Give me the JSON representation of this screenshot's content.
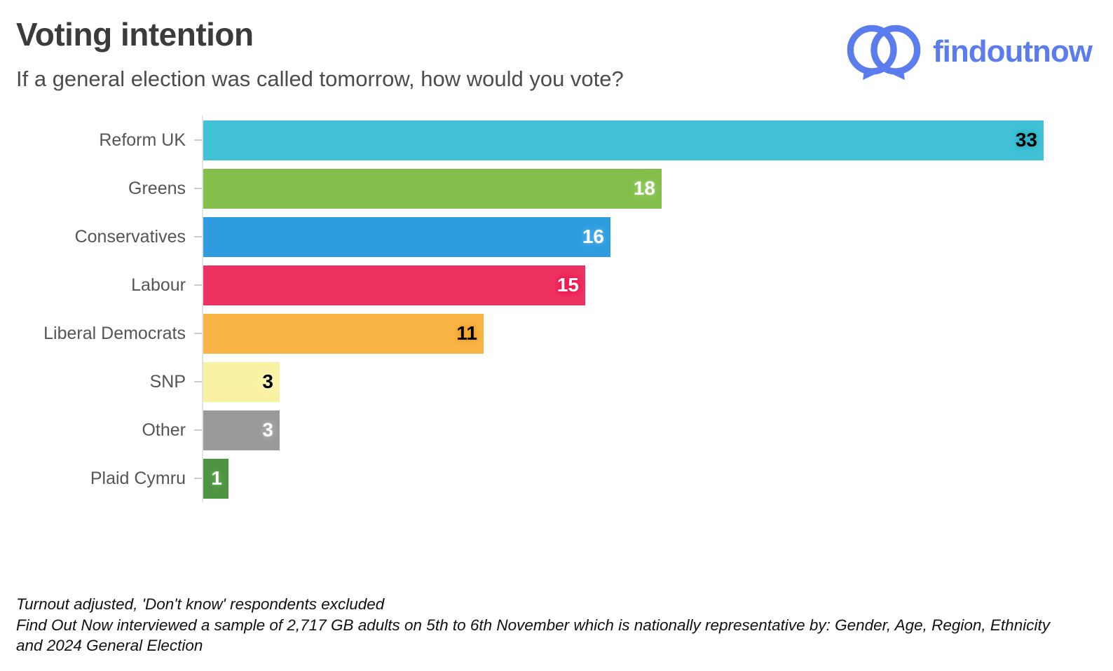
{
  "header": {
    "title": "Voting intention",
    "subtitle": "If a general election was called tomorrow, how would you vote?"
  },
  "logo": {
    "text": "findoutnow",
    "color": "#5b7cec"
  },
  "chart_data": {
    "type": "bar",
    "orientation": "horizontal",
    "title": "Voting intention",
    "question": "If a general election was called tomorrow, how would you vote?",
    "categories": [
      "Reform UK",
      "Greens",
      "Conservatives",
      "Labour",
      "Liberal Democrats",
      "SNP",
      "Other",
      "Plaid Cymru"
    ],
    "values": [
      33,
      18,
      16,
      15,
      11,
      3,
      3,
      1
    ],
    "bar_colors": [
      "#41c1d6",
      "#84be4b",
      "#309ce0",
      "#ec3261",
      "#f8b445",
      "#faf2a3",
      "#9a9a9a",
      "#4e9442"
    ],
    "value_label_colors": [
      "#000000",
      "#ffffff",
      "#ffffff",
      "#ffffff",
      "#000000",
      "#000000",
      "#ffffff",
      "#ffffff"
    ],
    "value_halo_colors": [
      "#2fb2c8",
      "#95cc62",
      "#4dabe8",
      "#f41650",
      "#f0a22f",
      "#fdf8c0",
      "#ababab",
      "#63a557"
    ],
    "xlim": [
      0,
      33.9
    ],
    "grid": false,
    "legend": false,
    "value_labels": "inside-end"
  },
  "footer": {
    "line1": "Turnout adjusted, 'Don't know' respondents excluded",
    "line2": "Find Out Now interviewed a sample of 2,717 GB adults on 5th to 6th November which is nationally representative by: Gender, Age, Region, Ethnicity and 2024 General Election"
  }
}
